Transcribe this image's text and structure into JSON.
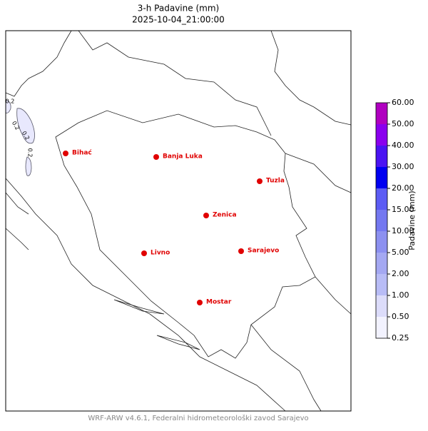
{
  "title": "3-h Padavine (mm)",
  "subtitle": "2025-10-04_21:00:00",
  "cities": [
    "Bihać",
    "Banja Luka",
    "Tuzla",
    "Zenica",
    "Livno",
    "Sarajevo",
    "Mostar"
  ],
  "contour_labels": [
    "0.2",
    "0.2",
    "0.2",
    "0.2"
  ],
  "colorbar": {
    "label": "Padavine (mm)",
    "ticks": [
      0.25,
      {
        "value": 0.5,
        "label": "0.50"
      },
      {
        "value": 1,
        "label": "1.00"
      },
      {
        "value": 2,
        "label": "2.00"
      },
      {
        "value": 5,
        "label": "5.00"
      },
      {
        "value": 10,
        "label": "10.00"
      },
      {
        "value": 15,
        "label": "15.00"
      },
      {
        "value": 20,
        "label": "20.00"
      },
      {
        "value": 30,
        "label": "30.00"
      },
      {
        "value": 40,
        "label": "40.00"
      },
      {
        "value": 50,
        "label": "50.00"
      },
      {
        "value": 60,
        "label": "60.00"
      }
    ],
    "colors": [
      "#f2f2fe",
      "#dcdcfa",
      "#b8bcf6",
      "#a4a8f2",
      "#8c90f0",
      "#7478f0",
      "#5c5cf4",
      "#0000f0",
      "#4a14f2",
      "#8a00ee",
      "#b000c0"
    ]
  },
  "footer": "WRF-ARW v4.6.1, Federalni hidrometeorološki zavod Sarajevo"
}
